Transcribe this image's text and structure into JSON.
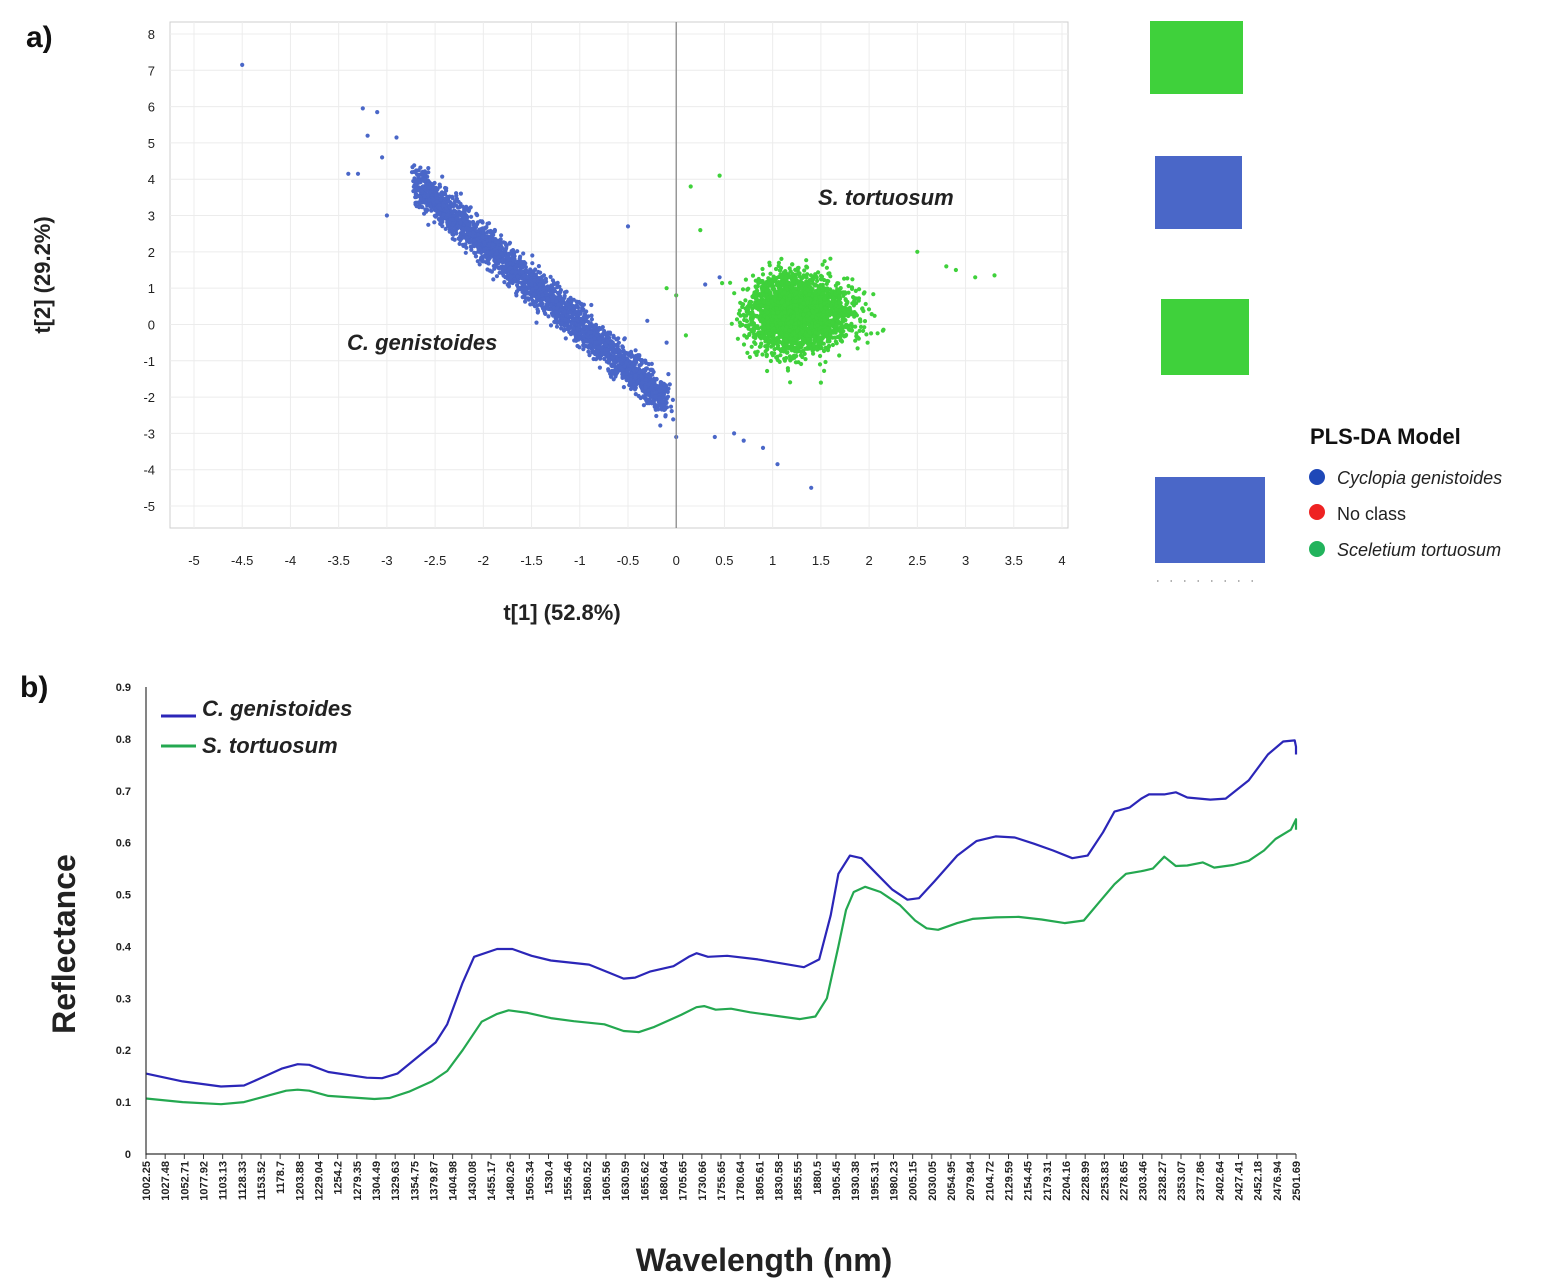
{
  "panels": {
    "a": "a)",
    "b": "b)"
  },
  "chart_data": [
    {
      "type": "scatter",
      "xlabel": "t[1] (52.8%)",
      "ylabel": "t[2] (29.2%)",
      "xlim": [
        -5.25,
        4.1
      ],
      "ylim": [
        -5.6,
        8.3
      ],
      "xticks": [
        -5,
        -4.5,
        -4,
        -3.5,
        -3,
        -2.5,
        -2,
        -1.5,
        -1,
        -0.5,
        0,
        0.5,
        1,
        1.5,
        2,
        2.5,
        3,
        3.5,
        4
      ],
      "yticks": [
        8,
        7,
        6,
        5,
        4,
        3,
        2,
        1,
        0,
        -1,
        -2,
        -3,
        -4,
        -5
      ],
      "grid": true,
      "annotations": [
        "S. tortuosum",
        "C. genistoides"
      ],
      "series": [
        {
          "name": "Cyclopia genistoides",
          "color": "#4a67c8",
          "cloud": {
            "center_x": -1.45,
            "slope": -2.0,
            "x_range": [
              -2.7,
              -0.1
            ],
            "spread": 0.45,
            "count": 2600
          },
          "outliers": [
            [
              -4.5,
              7.15
            ],
            [
              -3.25,
              5.95
            ],
            [
              -3.1,
              5.85
            ],
            [
              -2.9,
              5.15
            ],
            [
              -3.4,
              4.15
            ],
            [
              -3.3,
              4.15
            ],
            [
              -3.2,
              5.2
            ],
            [
              -3.0,
              3.0
            ],
            [
              -3.05,
              4.6
            ],
            [
              -0.5,
              2.7
            ],
            [
              0.0,
              -3.1
            ],
            [
              0.4,
              -3.1
            ],
            [
              0.6,
              -3.0
            ],
            [
              0.7,
              -3.2
            ],
            [
              0.9,
              -3.4
            ],
            [
              1.05,
              -3.85
            ],
            [
              1.4,
              -4.5
            ],
            [
              0.3,
              1.1
            ],
            [
              0.45,
              1.3
            ],
            [
              -0.3,
              0.1
            ],
            [
              -0.1,
              -0.5
            ]
          ]
        },
        {
          "name": "Sceletium tortuosum",
          "color": "#3fd13b",
          "cloud": {
            "center_x": 1.1,
            "center_y": 0.3,
            "x_range": [
              0.1,
              3.3
            ],
            "spread": 0.9,
            "count": 2600
          },
          "outliers": [
            [
              0.45,
              4.1
            ],
            [
              0.15,
              3.8
            ],
            [
              2.5,
              2.0
            ],
            [
              2.8,
              1.6
            ],
            [
              3.1,
              1.3
            ],
            [
              3.3,
              1.35
            ],
            [
              2.9,
              1.5
            ],
            [
              0.0,
              0.8
            ],
            [
              -0.1,
              1.0
            ],
            [
              0.1,
              -0.3
            ],
            [
              1.5,
              -1.6
            ],
            [
              0.25,
              2.6
            ]
          ]
        }
      ],
      "legend": {
        "title": "PLS-DA Model",
        "placement": "right",
        "entries": [
          {
            "label": "Cyclopia genistoides",
            "color": "#1f48b8",
            "italic": true
          },
          {
            "label": "No class",
            "color": "#ee2222",
            "italic": false
          },
          {
            "label": "Sceletium tortuosum",
            "color": "#22b35c",
            "italic": true
          }
        ]
      },
      "thumbnails": [
        {
          "color": "#3fd13b"
        },
        {
          "color": "#4a67c8"
        },
        {
          "color": "#3fd13b"
        },
        {
          "color": "#4a67c8"
        }
      ]
    },
    {
      "type": "line",
      "xlabel": "Wavelength (nm)",
      "ylabel": "Reflectance",
      "xlim": [
        1002.25,
        2501.69
      ],
      "ylim": [
        0,
        0.9
      ],
      "yticks": [
        0,
        0.1,
        0.2,
        0.3,
        0.4,
        0.5,
        0.6,
        0.7,
        0.8,
        0.9
      ],
      "xtick_labels": [
        "1002.25",
        "1027.48",
        "1052.71",
        "1077.92",
        "1103.13",
        "1128.33",
        "1153.52",
        "1178.7",
        "1203.88",
        "1229.04",
        "1254.2",
        "1279.35",
        "1304.49",
        "1329.63",
        "1354.75",
        "1379.87",
        "1404.98",
        "1430.08",
        "1455.17",
        "1480.26",
        "1505.34",
        "1530.4",
        "1555.46",
        "1580.52",
        "1605.56",
        "1630.59",
        "1655.62",
        "1680.64",
        "1705.65",
        "1730.66",
        "1755.65",
        "1780.64",
        "1805.61",
        "1830.58",
        "1855.55",
        "1880.5",
        "1905.45",
        "1930.38",
        "1955.31",
        "1980.23",
        "2005.15",
        "2030.05",
        "2054.95",
        "2079.84",
        "2104.72",
        "2129.59",
        "2154.45",
        "2179.31",
        "2204.16",
        "2228.99",
        "2253.83",
        "2278.65",
        "2303.46",
        "2328.27",
        "2353.07",
        "2377.86",
        "2402.64",
        "2427.41",
        "2452.18",
        "2476.94",
        "2501.69"
      ],
      "legend": {
        "placement": "top-left"
      },
      "series": [
        {
          "name": "C. genistoides",
          "color": "#2b26b8",
          "points": [
            [
              1002.25,
              0.155
            ],
            [
              1050,
              0.14
            ],
            [
              1100,
              0.13
            ],
            [
              1130,
              0.132
            ],
            [
              1150,
              0.145
            ],
            [
              1180,
              0.165
            ],
            [
              1200,
              0.173
            ],
            [
              1215,
              0.172
            ],
            [
              1240,
              0.158
            ],
            [
              1290,
              0.147
            ],
            [
              1310,
              0.146
            ],
            [
              1330,
              0.155
            ],
            [
              1355,
              0.185
            ],
            [
              1380,
              0.215
            ],
            [
              1395,
              0.25
            ],
            [
              1415,
              0.33
            ],
            [
              1430,
              0.38
            ],
            [
              1460,
              0.395
            ],
            [
              1480,
              0.395
            ],
            [
              1505,
              0.382
            ],
            [
              1530,
              0.373
            ],
            [
              1580,
              0.365
            ],
            [
              1605,
              0.35
            ],
            [
              1625,
              0.338
            ],
            [
              1640,
              0.34
            ],
            [
              1660,
              0.352
            ],
            [
              1690,
              0.362
            ],
            [
              1710,
              0.38
            ],
            [
              1720,
              0.387
            ],
            [
              1735,
              0.38
            ],
            [
              1760,
              0.382
            ],
            [
              1800,
              0.375
            ],
            [
              1840,
              0.365
            ],
            [
              1860,
              0.36
            ],
            [
              1880,
              0.375
            ],
            [
              1895,
              0.46
            ],
            [
              1905,
              0.54
            ],
            [
              1920,
              0.575
            ],
            [
              1935,
              0.57
            ],
            [
              1955,
              0.54
            ],
            [
              1975,
              0.51
            ],
            [
              1995,
              0.49
            ],
            [
              2010,
              0.493
            ],
            [
              2030,
              0.525
            ],
            [
              2060,
              0.575
            ],
            [
              2085,
              0.603
            ],
            [
              2110,
              0.612
            ],
            [
              2135,
              0.61
            ],
            [
              2160,
              0.598
            ],
            [
              2185,
              0.585
            ],
            [
              2210,
              0.57
            ],
            [
              2230,
              0.575
            ],
            [
              2250,
              0.62
            ],
            [
              2265,
              0.66
            ],
            [
              2285,
              0.668
            ],
            [
              2300,
              0.685
            ],
            [
              2310,
              0.693
            ],
            [
              2330,
              0.693
            ],
            [
              2345,
              0.697
            ],
            [
              2360,
              0.687
            ],
            [
              2390,
              0.683
            ],
            [
              2410,
              0.685
            ],
            [
              2440,
              0.72
            ],
            [
              2465,
              0.77
            ],
            [
              2485,
              0.795
            ],
            [
              2500,
              0.797
            ],
            [
              2515,
              0.785
            ],
            [
              2530,
              0.77
            ]
          ]
        },
        {
          "name": "S. tortuosum",
          "color": "#24a850",
          "points": [
            [
              1002.25,
              0.107
            ],
            [
              1050,
              0.1
            ],
            [
              1100,
              0.096
            ],
            [
              1130,
              0.1
            ],
            [
              1155,
              0.11
            ],
            [
              1185,
              0.122
            ],
            [
              1200,
              0.124
            ],
            [
              1215,
              0.122
            ],
            [
              1240,
              0.112
            ],
            [
              1300,
              0.106
            ],
            [
              1320,
              0.108
            ],
            [
              1345,
              0.12
            ],
            [
              1375,
              0.14
            ],
            [
              1395,
              0.16
            ],
            [
              1415,
              0.2
            ],
            [
              1440,
              0.255
            ],
            [
              1460,
              0.27
            ],
            [
              1475,
              0.277
            ],
            [
              1500,
              0.272
            ],
            [
              1530,
              0.262
            ],
            [
              1560,
              0.256
            ],
            [
              1600,
              0.25
            ],
            [
              1625,
              0.237
            ],
            [
              1645,
              0.235
            ],
            [
              1665,
              0.245
            ],
            [
              1700,
              0.268
            ],
            [
              1720,
              0.283
            ],
            [
              1730,
              0.285
            ],
            [
              1745,
              0.278
            ],
            [
              1765,
              0.28
            ],
            [
              1790,
              0.273
            ],
            [
              1830,
              0.265
            ],
            [
              1855,
              0.26
            ],
            [
              1875,
              0.265
            ],
            [
              1890,
              0.3
            ],
            [
              1905,
              0.4
            ],
            [
              1915,
              0.47
            ],
            [
              1925,
              0.505
            ],
            [
              1940,
              0.515
            ],
            [
              1960,
              0.505
            ],
            [
              1985,
              0.48
            ],
            [
              2005,
              0.45
            ],
            [
              2020,
              0.435
            ],
            [
              2035,
              0.432
            ],
            [
              2060,
              0.445
            ],
            [
              2080,
              0.453
            ],
            [
              2110,
              0.456
            ],
            [
              2140,
              0.457
            ],
            [
              2170,
              0.452
            ],
            [
              2200,
              0.445
            ],
            [
              2225,
              0.45
            ],
            [
              2245,
              0.485
            ],
            [
              2265,
              0.52
            ],
            [
              2280,
              0.54
            ],
            [
              2300,
              0.545
            ],
            [
              2315,
              0.55
            ],
            [
              2330,
              0.573
            ],
            [
              2345,
              0.555
            ],
            [
              2360,
              0.556
            ],
            [
              2380,
              0.562
            ],
            [
              2395,
              0.552
            ],
            [
              2420,
              0.557
            ],
            [
              2440,
              0.565
            ],
            [
              2460,
              0.585
            ],
            [
              2475,
              0.607
            ],
            [
              2495,
              0.625
            ],
            [
              2510,
              0.645
            ],
            [
              2525,
              0.645
            ],
            [
              2540,
              0.625
            ]
          ]
        }
      ]
    }
  ]
}
